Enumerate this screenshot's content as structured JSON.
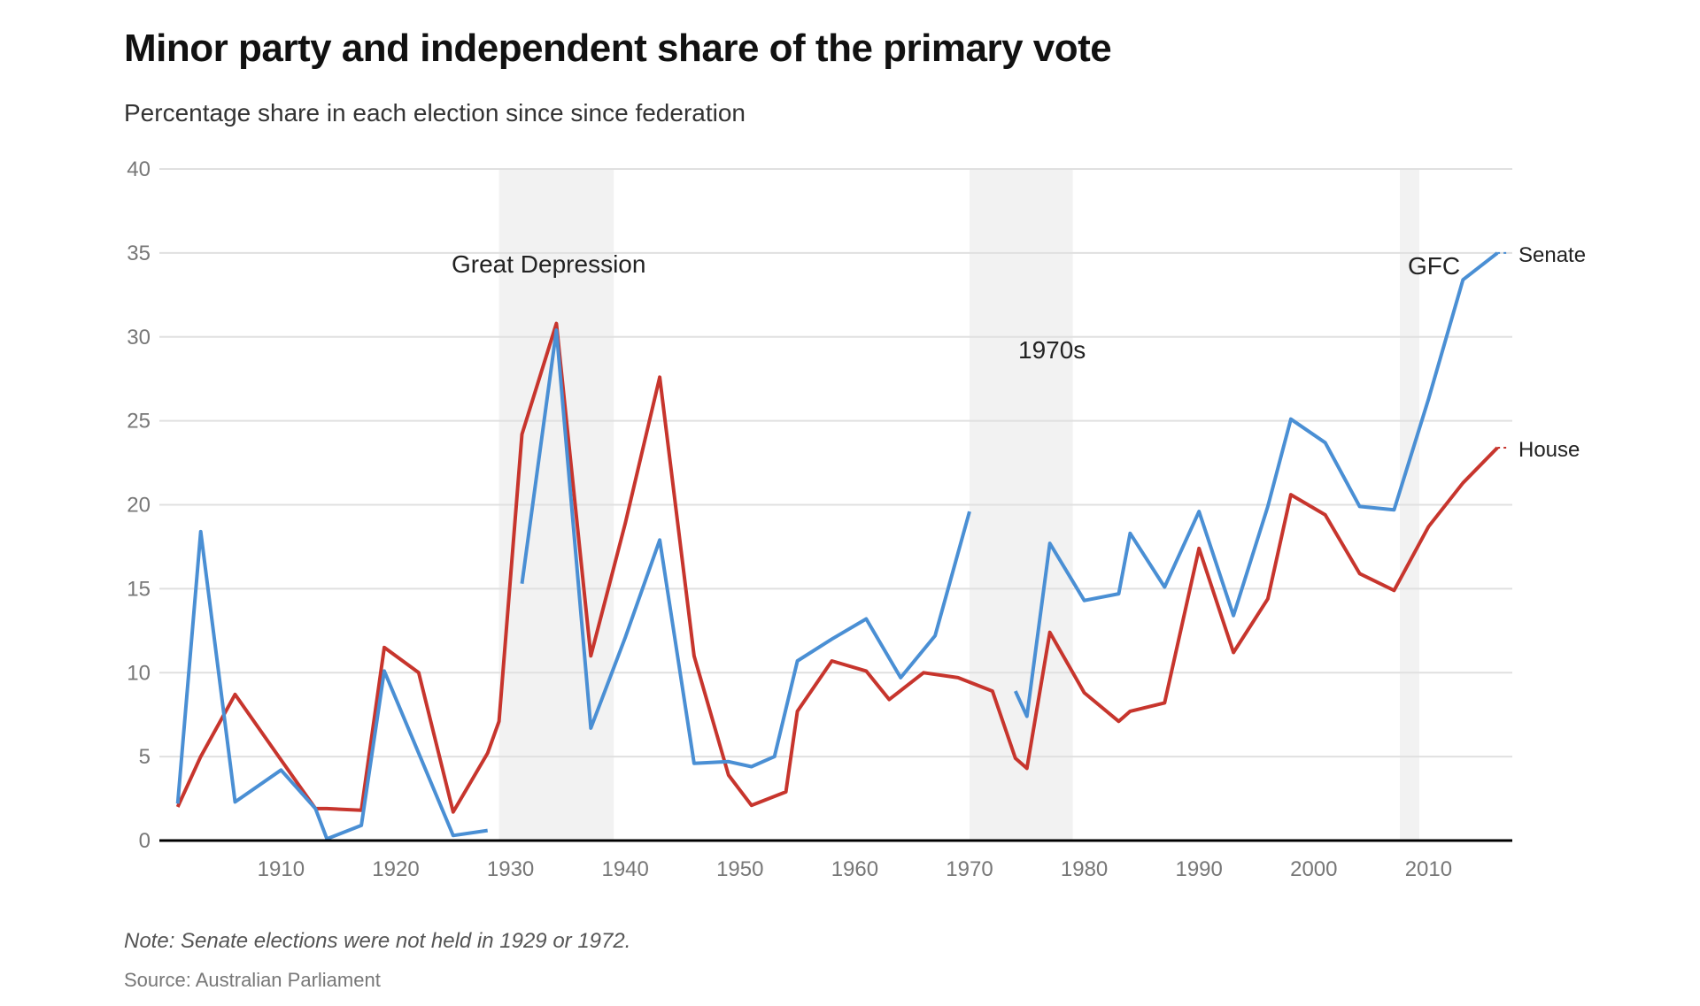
{
  "title": "Minor party and independent share of the primary vote",
  "subtitle": "Percentage share in each election since since federation",
  "note": "Note: Senate elections were not held in 1929 or 1972.",
  "source": "Source: Australian Parliament",
  "chart_data": {
    "type": "line",
    "title": "Minor party and independent share of the primary vote",
    "subtitle": "Percentage share in each election since since federation",
    "xlabel": "",
    "ylabel": "",
    "xlim": [
      1899.4,
      2017.3
    ],
    "ylim": [
      0,
      40
    ],
    "yticks": [
      0,
      5,
      10,
      15,
      20,
      25,
      30,
      35,
      40
    ],
    "xticks": [
      1910,
      1920,
      1930,
      1940,
      1950,
      1960,
      1970,
      1980,
      1990,
      2000,
      2010
    ],
    "grid": true,
    "legend": "direct labels at line ends (right)",
    "colors": {
      "Senate": "#4a8fd4",
      "House": "#c7352d",
      "band": "#f2f2f2",
      "axis": "#000000",
      "grid": "#e0e0e0"
    },
    "annotations": [
      {
        "label": "Great Depression",
        "start": 1929,
        "end": 1939
      },
      {
        "label": "1970s",
        "start": 1970,
        "end": 1979
      },
      {
        "label": "GFC",
        "start": 2007.5,
        "end": 2009.2
      }
    ],
    "series": [
      {
        "name": "Senate",
        "segments": [
          {
            "x": [
              1901,
              1903,
              1906,
              1910,
              1913,
              1914,
              1917,
              1919,
              1922,
              1925,
              1928
            ],
            "y": [
              2.2,
              18.4,
              2.3,
              4.2,
              1.9,
              0.1,
              0.9,
              10.1,
              5.2,
              0.3,
              0.6
            ]
          },
          {
            "x": [
              1931,
              1934,
              1937,
              1940,
              1943,
              1946,
              1949,
              1951,
              1953,
              1955,
              1958,
              1961,
              1964,
              1967,
              1970
            ],
            "y": [
              15.3,
              30.4,
              6.7,
              12.1,
              17.9,
              4.6,
              4.7,
              4.4,
              5.0,
              10.7,
              12.0,
              13.2,
              9.7,
              12.2,
              19.6
            ]
          },
          {
            "x": [
              1974,
              1975,
              1977,
              1980,
              1983,
              1984,
              1987,
              1990,
              1993,
              1996,
              1998,
              2001,
              2004,
              2007,
              2010,
              2013,
              2016
            ],
            "y": [
              8.9,
              7.4,
              17.7,
              14.3,
              14.7,
              18.3,
              15.1,
              19.6,
              13.4,
              19.9,
              25.1,
              23.7,
              19.9,
              19.7,
              26.3,
              33.4,
              35.0
            ]
          }
        ]
      },
      {
        "name": "House",
        "segments": [
          {
            "x": [
              1901,
              1903,
              1906,
              1910,
              1913,
              1914,
              1917,
              1919,
              1922,
              1925,
              1928,
              1929,
              1931,
              1934,
              1937,
              1940,
              1943,
              1946,
              1949,
              1951,
              1954,
              1955,
              1958,
              1961,
              1963,
              1966,
              1969,
              1972,
              1974,
              1975,
              1977,
              1980,
              1983,
              1984,
              1987,
              1990,
              1993,
              1996,
              1998,
              2001,
              2004,
              2007,
              2010,
              2013,
              2016
            ],
            "y": [
              2.0,
              5.0,
              8.7,
              4.8,
              1.9,
              1.9,
              1.8,
              11.5,
              10.0,
              1.7,
              5.2,
              7.1,
              24.2,
              30.8,
              11.0,
              18.9,
              27.6,
              11.0,
              3.9,
              2.1,
              2.9,
              7.7,
              10.7,
              10.1,
              8.4,
              10.0,
              9.7,
              8.9,
              4.9,
              4.3,
              12.4,
              8.8,
              7.1,
              7.7,
              8.2,
              17.4,
              11.2,
              14.4,
              20.6,
              19.4,
              15.9,
              14.9,
              18.7,
              21.3,
              23.4
            ]
          }
        ]
      }
    ]
  }
}
